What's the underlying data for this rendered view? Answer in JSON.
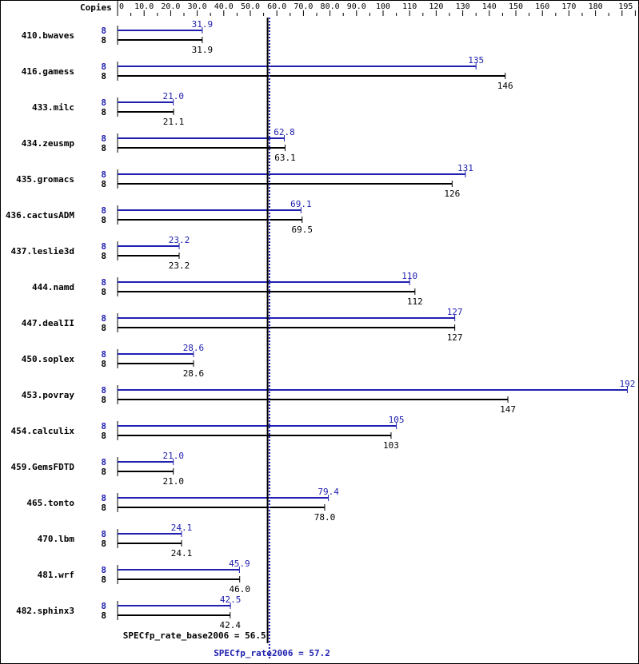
{
  "chart_data": {
    "type": "bar",
    "orientation": "horizontal",
    "header_label": "Copies",
    "xlim": [
      0,
      195
    ],
    "tick_labels": [
      "0",
      "10.0",
      "20.0",
      "30.0",
      "40.0",
      "50.0",
      "60.0",
      "70.0",
      "80.0",
      "90.0",
      "100",
      "110",
      "120",
      "130",
      "140",
      "150",
      "160",
      "170",
      "180",
      "195"
    ],
    "tick_values": [
      0,
      10,
      20,
      30,
      40,
      50,
      60,
      70,
      80,
      90,
      100,
      110,
      120,
      130,
      140,
      150,
      160,
      170,
      180,
      195
    ],
    "categories": [
      "410.bwaves",
      "416.gamess",
      "433.milc",
      "434.zeusmp",
      "435.gromacs",
      "436.cactusADM",
      "437.leslie3d",
      "444.namd",
      "447.dealII",
      "450.soplex",
      "453.povray",
      "454.calculix",
      "459.GemsFDTD",
      "465.tonto",
      "470.lbm",
      "481.wrf",
      "482.sphinx3"
    ],
    "series": [
      {
        "name": "SPECfp_rate2006",
        "color": "#2020b0",
        "copies": [
          "8",
          "8",
          "8",
          "8",
          "8",
          "8",
          "8",
          "8",
          "8",
          "8",
          "8",
          "8",
          "8",
          "8",
          "8",
          "8",
          "8"
        ],
        "values": [
          31.9,
          135,
          21.0,
          62.8,
          131,
          69.1,
          23.2,
          110,
          127,
          28.6,
          192,
          105,
          21.0,
          79.4,
          24.1,
          45.9,
          42.5
        ],
        "labels": [
          "31.9",
          "135",
          "21.0",
          "62.8",
          "131",
          "69.1",
          "23.2",
          "110",
          "127",
          "28.6",
          "192",
          "105",
          "21.0",
          "79.4",
          "24.1",
          "45.9",
          "42.5"
        ]
      },
      {
        "name": "SPECfp_rate_base2006",
        "color": "#000000",
        "copies": [
          "8",
          "8",
          "8",
          "8",
          "8",
          "8",
          "8",
          "8",
          "8",
          "8",
          "8",
          "8",
          "8",
          "8",
          "8",
          "8",
          "8"
        ],
        "values": [
          31.9,
          146,
          21.1,
          63.1,
          126,
          69.5,
          23.2,
          112,
          127,
          28.6,
          147,
          103,
          21.0,
          78.0,
          24.1,
          46.0,
          42.4
        ],
        "labels": [
          "31.9",
          "146",
          "21.1",
          "63.1",
          "126",
          "69.5",
          "23.2",
          "112",
          "127",
          "28.6",
          "147",
          "103",
          "21.0",
          "78.0",
          "24.1",
          "46.0",
          "42.4"
        ]
      }
    ],
    "reference_lines": [
      {
        "label": "SPECfp_rate_base2006 = 56.5",
        "value": 56.5,
        "color": "#000000",
        "style": "solid"
      },
      {
        "label": "SPECfp_rate2006 = 57.2",
        "value": 57.2,
        "color": "#2020b0",
        "style": "dotted"
      }
    ]
  }
}
